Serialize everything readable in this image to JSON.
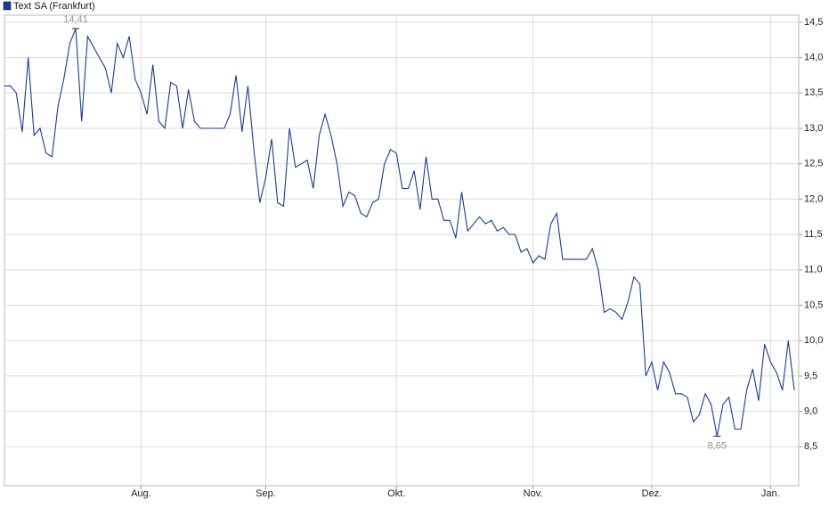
{
  "chart_data": {
    "type": "line",
    "categories": [
      null,
      null,
      null,
      null,
      null,
      null,
      null,
      null,
      null,
      null,
      null,
      null,
      null,
      null,
      null,
      null,
      null,
      null,
      null,
      null,
      null,
      null,
      null,
      "Aug.",
      null,
      null,
      null,
      null,
      null,
      null,
      null,
      null,
      null,
      null,
      null,
      null,
      null,
      null,
      null,
      null,
      null,
      null,
      null,
      null,
      "Sep.",
      null,
      null,
      null,
      null,
      null,
      null,
      null,
      null,
      null,
      null,
      null,
      null,
      null,
      null,
      null,
      null,
      null,
      null,
      null,
      null,
      null,
      "Okt.",
      null,
      null,
      null,
      null,
      null,
      null,
      null,
      null,
      null,
      null,
      null,
      null,
      null,
      null,
      null,
      null,
      null,
      null,
      null,
      null,
      null,
      null,
      "Nov.",
      null,
      null,
      null,
      null,
      null,
      null,
      null,
      null,
      null,
      null,
      null,
      null,
      null,
      null,
      null,
      null,
      null,
      null,
      null,
      "Dez.",
      null,
      null,
      null,
      null,
      null,
      null,
      null,
      null,
      null,
      null,
      null,
      null,
      null,
      null,
      null,
      null,
      null,
      null,
      null,
      "Jan.",
      null,
      null,
      null,
      null
    ],
    "series": [
      {
        "name": "Text SA (Frankfurt)",
        "color": "#1a3d8f",
        "values": [
          13.6,
          13.6,
          13.5,
          12.95,
          14.0,
          12.9,
          13.0,
          12.65,
          12.6,
          13.3,
          13.7,
          14.2,
          14.41,
          13.1,
          14.3,
          14.15,
          14.0,
          13.85,
          13.5,
          14.2,
          14.0,
          14.3,
          13.7,
          13.5,
          13.2,
          13.9,
          13.1,
          13.0,
          13.65,
          13.6,
          13.0,
          13.55,
          13.1,
          13.0,
          13.0,
          13.0,
          13.0,
          13.0,
          13.2,
          13.75,
          12.95,
          13.6,
          12.7,
          11.95,
          12.3,
          12.85,
          11.95,
          11.9,
          13.0,
          12.45,
          12.5,
          12.55,
          12.15,
          12.9,
          13.2,
          12.9,
          12.5,
          11.9,
          12.1,
          12.05,
          11.8,
          11.75,
          11.95,
          12.0,
          12.5,
          12.7,
          12.65,
          12.15,
          12.15,
          12.4,
          11.85,
          12.6,
          12.0,
          12.0,
          11.7,
          11.7,
          11.45,
          12.1,
          11.55,
          11.65,
          11.75,
          11.65,
          11.7,
          11.55,
          11.6,
          11.5,
          11.5,
          11.25,
          11.3,
          11.1,
          11.2,
          11.15,
          11.65,
          11.8,
          11.15,
          11.15,
          11.15,
          11.15,
          11.15,
          11.3,
          11.0,
          10.4,
          10.45,
          10.4,
          10.3,
          10.55,
          10.9,
          10.8,
          9.5,
          9.7,
          9.3,
          9.7,
          9.55,
          9.25,
          9.25,
          9.2,
          8.85,
          8.95,
          9.25,
          9.1,
          8.65,
          9.1,
          9.2,
          8.75,
          8.75,
          9.3,
          9.6,
          9.15,
          9.95,
          9.7,
          9.55,
          9.3,
          10.0,
          9.3
        ],
        "value_labels": [
          null,
          null,
          null,
          null,
          null,
          null,
          null,
          null,
          null,
          null,
          null,
          null,
          "14,41",
          null,
          null,
          null,
          null,
          null,
          null,
          null,
          null,
          null,
          null,
          null,
          null,
          null,
          null,
          null,
          null,
          null,
          null,
          null,
          null,
          null,
          null,
          null,
          null,
          null,
          null,
          null,
          null,
          null,
          null,
          null,
          null,
          null,
          null,
          null,
          null,
          null,
          null,
          null,
          null,
          null,
          null,
          null,
          null,
          null,
          null,
          null,
          null,
          null,
          null,
          null,
          null,
          null,
          null,
          null,
          null,
          null,
          null,
          null,
          null,
          null,
          null,
          null,
          null,
          null,
          null,
          null,
          null,
          null,
          null,
          null,
          null,
          null,
          null,
          null,
          null,
          null,
          null,
          null,
          null,
          null,
          null,
          null,
          null,
          null,
          null,
          null,
          null,
          null,
          null,
          null,
          null,
          null,
          null,
          null,
          null,
          null,
          null,
          null,
          null,
          null,
          null,
          null,
          null,
          null,
          null,
          null,
          "8,65",
          null,
          null,
          null,
          null,
          null,
          null,
          null,
          null,
          null,
          null,
          null,
          null,
          null
        ]
      }
    ],
    "ylim": [
      7.95,
      14.6
    ],
    "yticks": [
      {
        "value": 8.5,
        "label": "8,5"
      },
      {
        "value": 9.0,
        "label": "9,0"
      },
      {
        "value": 9.5,
        "label": "9,5"
      },
      {
        "value": 10.0,
        "label": "10,0"
      },
      {
        "value": 10.5,
        "label": "10,5"
      },
      {
        "value": 11.0,
        "label": "11,0"
      },
      {
        "value": 11.5,
        "label": "11,5"
      },
      {
        "value": 12.0,
        "label": "12,0"
      },
      {
        "value": 12.5,
        "label": "12,5"
      },
      {
        "value": 13.0,
        "label": "13,0"
      },
      {
        "value": 13.5,
        "label": "13,5"
      },
      {
        "value": 14.0,
        "label": "14,0"
      },
      {
        "value": 14.5,
        "label": "14,5"
      }
    ],
    "grid": true,
    "legend": "top-left"
  }
}
